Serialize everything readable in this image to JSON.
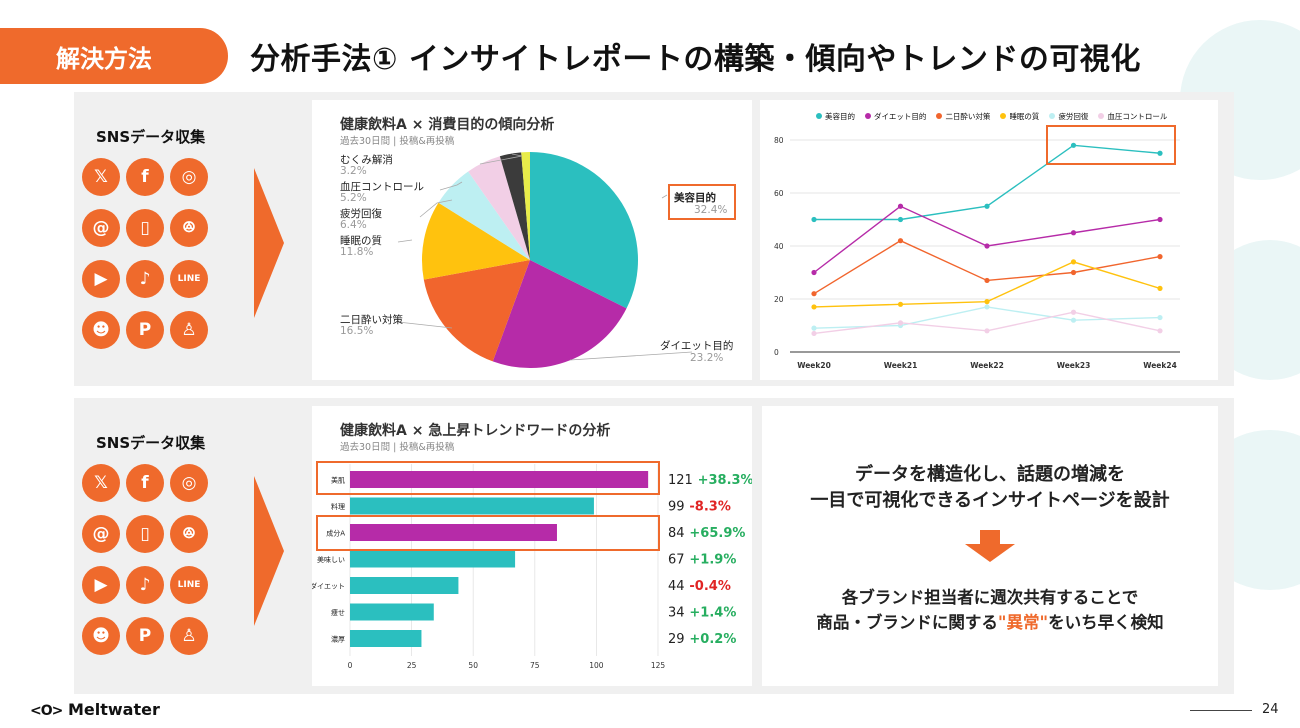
{
  "header": {
    "tag": "解決方法",
    "title": "分析手法① インサイトレポートの構築・傾向やトレンドの可視化"
  },
  "social": {
    "title": "SNSデータ収集",
    "icons": [
      {
        "name": "x-icon",
        "glyph": "𝕏"
      },
      {
        "name": "facebook-icon",
        "glyph": "f"
      },
      {
        "name": "instagram-icon",
        "glyph": "◎"
      },
      {
        "name": "threads-icon",
        "glyph": "@"
      },
      {
        "name": "twitch-icon",
        "glyph": "▯"
      },
      {
        "name": "bluesky-icon",
        "glyph": "ꔮ"
      },
      {
        "name": "youtube-icon",
        "glyph": "▶"
      },
      {
        "name": "tiktok-icon",
        "glyph": "♪"
      },
      {
        "name": "line-icon",
        "glyph": "LINE"
      },
      {
        "name": "reddit-icon",
        "glyph": "☻"
      },
      {
        "name": "pinterest-icon",
        "glyph": "P"
      },
      {
        "name": "snapchat-icon",
        "glyph": "♙"
      }
    ]
  },
  "colors": {
    "accent": "#ef6a2c",
    "teal": "#2bbfbf",
    "purple": "#b62ba8",
    "orange": "#f1652d",
    "yellow": "#ffc20e",
    "lightblue": "#bdeff2",
    "pink": "#f2cfe6",
    "dark": "#3b3b3b",
    "lime": "#e8ec4a"
  },
  "chart_data": [
    {
      "type": "pie",
      "title": "健康飲料A × 消費目的の傾向分析",
      "subtitle": "過去30日間 | 投稿&再投稿",
      "slices": [
        {
          "label": "美容目的",
          "pct": "32.4%",
          "value": 32.4,
          "color": "#2bbfbf"
        },
        {
          "label": "ダイエット目的",
          "pct": "23.2%",
          "value": 23.2,
          "color": "#b62ba8"
        },
        {
          "label": "二日酔い対策",
          "pct": "16.5%",
          "value": 16.5,
          "color": "#f1652d"
        },
        {
          "label": "睡眠の質",
          "pct": "11.8%",
          "value": 11.8,
          "color": "#ffc20e"
        },
        {
          "label": "疲労回復",
          "pct": "6.4%",
          "value": 6.4,
          "color": "#bdeff2"
        },
        {
          "label": "血圧コントロール",
          "pct": "5.2%",
          "value": 5.2,
          "color": "#f2cfe6"
        },
        {
          "label": "むくみ解消",
          "pct": "3.2%",
          "value": 3.2,
          "color": "#3b3b3b"
        },
        {
          "label": "",
          "pct": "",
          "value": 1.3,
          "color": "#e8ec4a"
        }
      ]
    },
    {
      "type": "line",
      "categories": [
        "Week20",
        "Week21",
        "Week22",
        "Week23",
        "Week24"
      ],
      "ylim": [
        0,
        80
      ],
      "yticks": [
        "0",
        "20",
        "40",
        "60",
        "80"
      ],
      "series": [
        {
          "name": "美容目的",
          "color": "#2bbfbf",
          "values": [
            50,
            50,
            55,
            78,
            75
          ]
        },
        {
          "name": "ダイエット目的",
          "color": "#b62ba8",
          "values": [
            30,
            55,
            40,
            45,
            50
          ]
        },
        {
          "name": "二日酔い対策",
          "color": "#f1652d",
          "values": [
            22,
            42,
            27,
            30,
            36
          ]
        },
        {
          "name": "睡眠の質",
          "color": "#ffc20e",
          "values": [
            17,
            18,
            19,
            34,
            24
          ]
        },
        {
          "name": "疲労回復",
          "color": "#bdeff2",
          "values": [
            9,
            10,
            17,
            12,
            13
          ]
        },
        {
          "name": "血圧コントロール",
          "color": "#f2cfe6",
          "values": [
            7,
            11,
            8,
            15,
            8
          ]
        }
      ]
    },
    {
      "type": "bar",
      "title": "健康飲料A × 急上昇トレンドワードの分析",
      "subtitle": "過去30日間 | 投稿&再投稿",
      "xlim": [
        0,
        125
      ],
      "xticks": [
        "0",
        "25",
        "50",
        "75",
        "100",
        "125"
      ],
      "bars": [
        {
          "label": "美肌",
          "value": 121,
          "value_text": "121",
          "change": "+38.3%",
          "dir": "pos",
          "color": "#b62ba8"
        },
        {
          "label": "料理",
          "value": 99,
          "value_text": "99",
          "change": "-8.3%",
          "dir": "neg",
          "color": "#2bbfbf"
        },
        {
          "label": "成分A",
          "value": 84,
          "value_text": "84",
          "change": "+65.9%",
          "dir": "pos",
          "color": "#b62ba8"
        },
        {
          "label": "美味しい",
          "value": 67,
          "value_text": "67",
          "change": "+1.9%",
          "dir": "pos",
          "color": "#2bbfbf"
        },
        {
          "label": "ダイエット",
          "value": 44,
          "value_text": "44",
          "change": "-0.4%",
          "dir": "neg",
          "color": "#2bbfbf"
        },
        {
          "label": "痩せ",
          "value": 34,
          "value_text": "34",
          "change": "+1.4%",
          "dir": "pos",
          "color": "#2bbfbf"
        },
        {
          "label": "濃厚",
          "value": 29,
          "value_text": "29",
          "change": "+0.2%",
          "dir": "pos",
          "color": "#2bbfbf"
        }
      ]
    }
  ],
  "message": {
    "line1": "データを構造化し、話題の増減を",
    "line2": "一目で可視化できるインサイトページを設計",
    "line3": "各ブランド担当者に週次共有することで",
    "line4_pre": "商品・ブランドに関する",
    "line4_em": "\"異常\"",
    "line4_post": "をいち早く検知"
  },
  "footer": {
    "logo": "Meltwater",
    "page": "24"
  }
}
